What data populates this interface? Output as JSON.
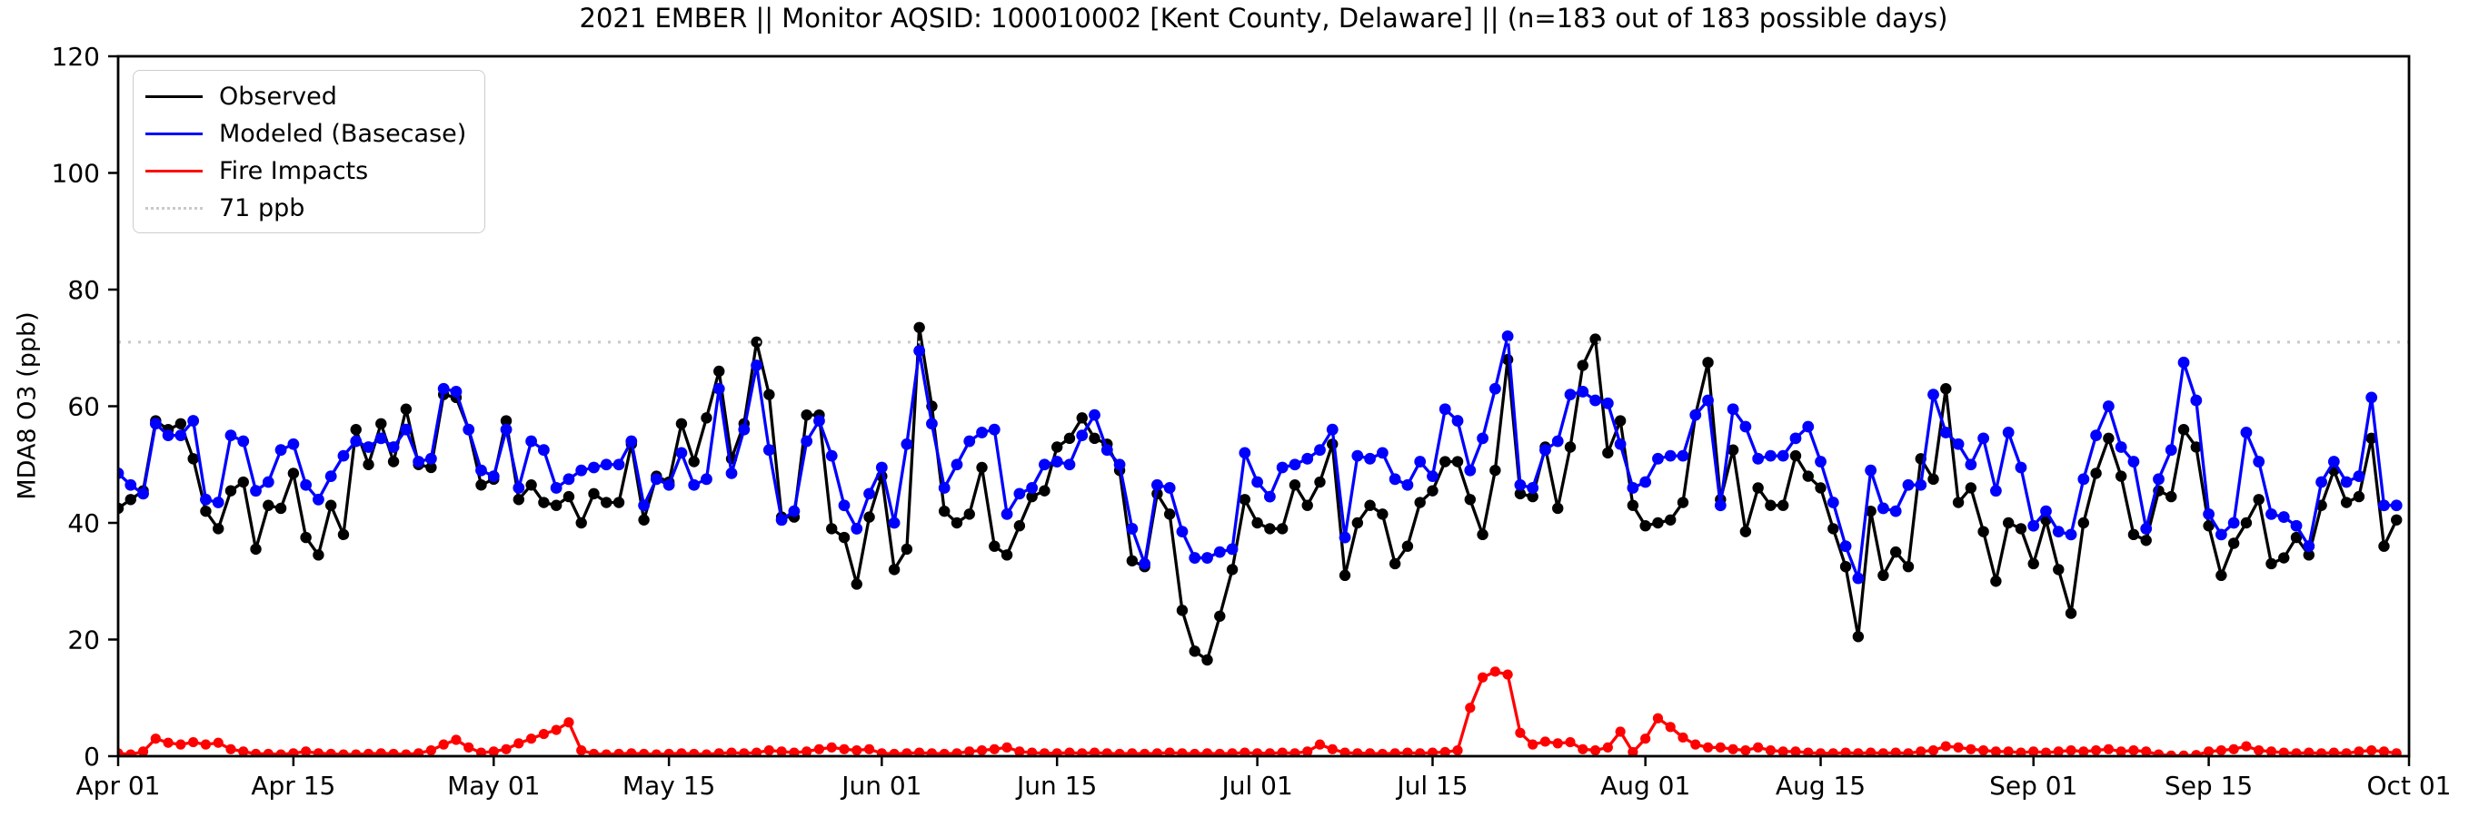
{
  "title": "2021 EMBER || Monitor AQSID: 100010002 [Kent County, Delaware] || (n=183 out of 183 possible days)",
  "legend": {
    "items": [
      {
        "label": "Observed",
        "color": "#000000",
        "style": "solid"
      },
      {
        "label": "Modeled (Basecase)",
        "color": "#0000ff",
        "style": "solid"
      },
      {
        "label": "Fire Impacts",
        "color": "#ff0000",
        "style": "solid"
      },
      {
        "label": "71 ppb",
        "color": "#c9c9c9",
        "style": "dotted"
      }
    ]
  },
  "chart_data": {
    "type": "line",
    "title": "2021 EMBER || Monitor AQSID: 100010002 [Kent County, Delaware] || (n=183 out of 183 possible days)",
    "xlabel": "",
    "ylabel": "MDA8 O3 (ppb)",
    "ylim": [
      0,
      120
    ],
    "y_ticks": [
      0,
      20,
      40,
      60,
      80,
      100,
      120
    ],
    "x_range_days": 183,
    "x_start_date": "Apr 01",
    "x_end_date": "Oct 01",
    "grid": false,
    "legend_position": "upper left",
    "x_ticks": [
      {
        "label": "Apr 01",
        "day": 0
      },
      {
        "label": "Apr 15",
        "day": 14
      },
      {
        "label": "May 01",
        "day": 30
      },
      {
        "label": "May 15",
        "day": 44
      },
      {
        "label": "Jun 01",
        "day": 61
      },
      {
        "label": "Jun 15",
        "day": 75
      },
      {
        "label": "Jul 01",
        "day": 91
      },
      {
        "label": "Jul 15",
        "day": 105
      },
      {
        "label": "Aug 01",
        "day": 122
      },
      {
        "label": "Aug 15",
        "day": 136
      },
      {
        "label": "Sep 01",
        "day": 153
      },
      {
        "label": "Sep 15",
        "day": 167
      },
      {
        "label": "Oct 01",
        "day": 183
      }
    ],
    "reference_line": {
      "label": "71 ppb",
      "value": 71,
      "color": "#c9c9c9",
      "style": "dotted"
    },
    "series": [
      {
        "name": "Observed",
        "color": "#000000",
        "marker": "circle",
        "marker_radius": 6.2,
        "values": [
          42.5,
          44,
          45.5,
          57.5,
          56,
          57,
          51,
          42,
          39,
          45.5,
          47,
          35.5,
          43,
          42.5,
          48.5,
          37.5,
          34.5,
          43,
          38,
          56,
          50,
          57,
          50.5,
          59.5,
          50,
          49.5,
          62,
          61.5,
          56,
          46.5,
          47.5,
          57.5,
          44,
          46.5,
          43.5,
          43,
          44.5,
          40,
          45,
          43.5,
          43.5,
          53.5,
          40.5,
          48,
          47,
          57,
          50.5,
          58,
          66,
          51,
          57,
          71,
          62,
          41,
          41,
          58.5,
          58.5,
          39,
          37.5,
          29.5,
          41,
          48,
          32,
          35.5,
          73.5,
          60,
          42,
          40,
          41.5,
          49.5,
          36,
          34.5,
          39.5,
          44.5,
          45.5,
          53,
          54.5,
          58,
          54.5,
          53.5,
          49,
          33.5,
          32.5,
          45,
          41.5,
          25,
          18,
          16.5,
          24,
          32,
          44,
          40,
          39,
          39,
          46.5,
          43,
          47,
          53.5,
          31,
          40,
          43,
          41.5,
          33,
          36,
          43.5,
          45.5,
          50.5,
          50.5,
          44,
          38,
          49,
          68,
          45,
          44.5,
          53,
          42.5,
          53,
          67,
          71.5,
          52,
          57.5,
          43,
          39.5,
          40,
          40.5,
          43.5,
          58.5,
          67.5,
          44,
          52.5,
          38.5,
          46,
          43,
          43,
          51.5,
          48,
          46,
          39,
          32.5,
          20.5,
          42,
          31,
          35,
          32.5,
          51,
          47.5,
          63,
          43.5,
          46,
          38.5,
          30,
          40,
          39,
          33,
          40.5,
          32,
          24.5,
          40,
          48.5,
          54.5,
          48,
          38,
          37,
          45.5,
          44.5,
          56,
          53,
          39.5,
          31,
          36.5,
          40,
          44,
          33,
          34,
          37.5,
          34.5,
          43,
          49,
          43.5,
          44.5,
          54.5,
          36,
          40.5
        ]
      },
      {
        "name": "Modeled (Basecase)",
        "color": "#0000ff",
        "marker": "circle",
        "marker_radius": 6.4,
        "values": [
          48.5,
          46.5,
          45,
          57,
          55,
          55,
          57.5,
          44,
          43.5,
          55,
          54,
          45.5,
          47,
          52.5,
          53.5,
          46.5,
          44,
          48,
          51.5,
          54,
          53,
          54.5,
          53,
          56,
          50.5,
          51,
          63,
          62.5,
          56,
          49,
          48,
          56,
          46,
          54,
          52.5,
          46,
          47.5,
          49,
          49.5,
          50,
          50,
          54,
          43,
          47.5,
          46.5,
          52,
          46.5,
          47.5,
          63,
          48.5,
          56,
          67,
          52.5,
          40.5,
          42,
          54,
          57.5,
          51.5,
          43,
          39,
          45,
          49.5,
          40,
          53.5,
          69.5,
          57,
          46,
          50,
          54,
          55.5,
          56,
          41.5,
          45,
          46,
          50,
          50.5,
          50,
          55,
          58.5,
          52.5,
          50,
          39,
          33,
          46.5,
          46,
          38.5,
          34,
          34,
          35,
          35.5,
          52,
          47,
          44.5,
          49.5,
          50,
          51,
          52.5,
          56,
          37.5,
          51.5,
          51,
          52,
          47.5,
          46.5,
          50.5,
          48,
          59.5,
          57.5,
          49,
          54.5,
          63,
          72,
          46.5,
          46,
          52.5,
          54,
          62,
          62.5,
          61,
          60.5,
          53.5,
          46,
          47,
          51,
          51.5,
          51.5,
          58.5,
          61,
          43,
          59.5,
          56.5,
          51,
          51.5,
          51.5,
          54.5,
          56.5,
          50.5,
          43.5,
          36,
          30.5,
          49,
          42.5,
          42,
          46.5,
          46.5,
          62,
          55.5,
          53.5,
          50,
          54.5,
          45.5,
          55.5,
          49.5,
          39.5,
          42,
          38.5,
          38,
          47.5,
          55,
          60,
          53,
          50.5,
          39,
          47.5,
          52.5,
          67.5,
          61,
          41.5,
          38,
          40,
          55.5,
          50.5,
          41.5,
          41,
          39.5,
          36,
          47,
          50.5,
          47,
          48,
          61.5,
          43,
          43
        ]
      },
      {
        "name": "Fire Impacts",
        "color": "#ff0000",
        "marker": "circle",
        "marker_radius": 5.6,
        "values": [
          0.5,
          0.3,
          0.8,
          3,
          2.3,
          2,
          2.4,
          2,
          2.3,
          1.2,
          0.8,
          0.4,
          0.4,
          0.3,
          0.5,
          0.8,
          0.5,
          0.4,
          0.3,
          0.3,
          0.4,
          0.5,
          0.4,
          0.3,
          0.5,
          1,
          2,
          2.8,
          1.5,
          0.6,
          0.8,
          1.2,
          2.2,
          3,
          3.8,
          4.5,
          5.8,
          1,
          0.4,
          0.3,
          0.4,
          0.5,
          0.4,
          0.3,
          0.4,
          0.5,
          0.4,
          0.3,
          0.5,
          0.6,
          0.5,
          0.6,
          1,
          0.8,
          0.6,
          0.8,
          1.2,
          1.5,
          1.2,
          1,
          1.2,
          0.5,
          0.4,
          0.5,
          0.6,
          0.5,
          0.4,
          0.5,
          0.8,
          1,
          1.2,
          1.5,
          0.8,
          0.6,
          0.5,
          0.5,
          0.6,
          0.5,
          0.6,
          0.5,
          0.4,
          0.5,
          0.4,
          0.5,
          0.6,
          0.5,
          0.4,
          0.5,
          0.4,
          0.5,
          0.6,
          0.5,
          0.5,
          0.6,
          0.5,
          0.8,
          2,
          1.2,
          0.6,
          0.5,
          0.5,
          0.4,
          0.5,
          0.6,
          0.5,
          0.6,
          0.7,
          1,
          8.3,
          13.5,
          14.5,
          14,
          4,
          2,
          2.5,
          2.2,
          2.4,
          1.2,
          1,
          1.5,
          4.2,
          0.7,
          3,
          6.5,
          5,
          3.2,
          2,
          1.5,
          1.5,
          1.2,
          1,
          1.5,
          1,
          0.8,
          0.8,
          0.6,
          0.5,
          0.5,
          0.6,
          0.5,
          0.6,
          0.5,
          0.6,
          0.5,
          0.8,
          1,
          1.7,
          1.5,
          1.2,
          1,
          0.8,
          0.8,
          0.6,
          0.8,
          0.6,
          0.8,
          1,
          0.8,
          1,
          1.2,
          0.8,
          1,
          0.8,
          0.3,
          0.1,
          0.1,
          0.2,
          0.8,
          1,
          1.2,
          1.7,
          1,
          0.8,
          0.6,
          0.5,
          0.6,
          0.5,
          0.6,
          0.5,
          0.8,
          1,
          0.8,
          0.5
        ]
      }
    ]
  }
}
